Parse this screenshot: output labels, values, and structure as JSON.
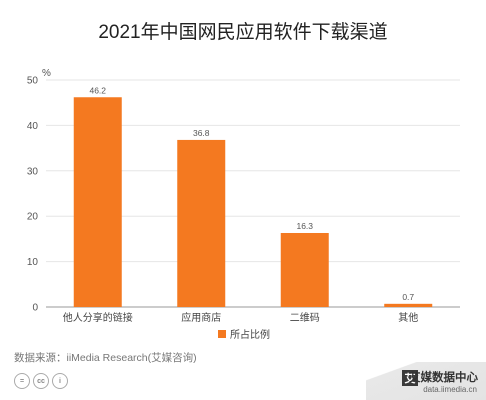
{
  "colors": {
    "bar": "#f47920",
    "grid": "#e6e6e6",
    "axis": "#999999",
    "text": "#333333"
  },
  "chart_data": {
    "type": "bar",
    "title": "2021年中国网民应用软件下载渠道",
    "ylabel": "%",
    "categories": [
      "他人分享的链接",
      "应用商店",
      "二维码",
      "其他"
    ],
    "series": [
      {
        "name": "所占比例",
        "values": [
          46.2,
          36.8,
          16.3,
          0.7
        ]
      }
    ],
    "data_labels": [
      "46.2",
      "36.8",
      "16.3",
      "0.7"
    ],
    "y_ticks": [
      0,
      10,
      20,
      30,
      40,
      50
    ],
    "ylim": [
      0,
      50
    ],
    "grid": true,
    "legend_position": "bottom-center"
  },
  "footer": {
    "source": "数据来源：iiMedia Research(艾媒咨询)",
    "license_icons": [
      "=",
      "cc",
      "i"
    ]
  },
  "brand": {
    "logo_char": "艾",
    "name": "艾媒数据中心",
    "url": "data.iimedia.cn"
  }
}
